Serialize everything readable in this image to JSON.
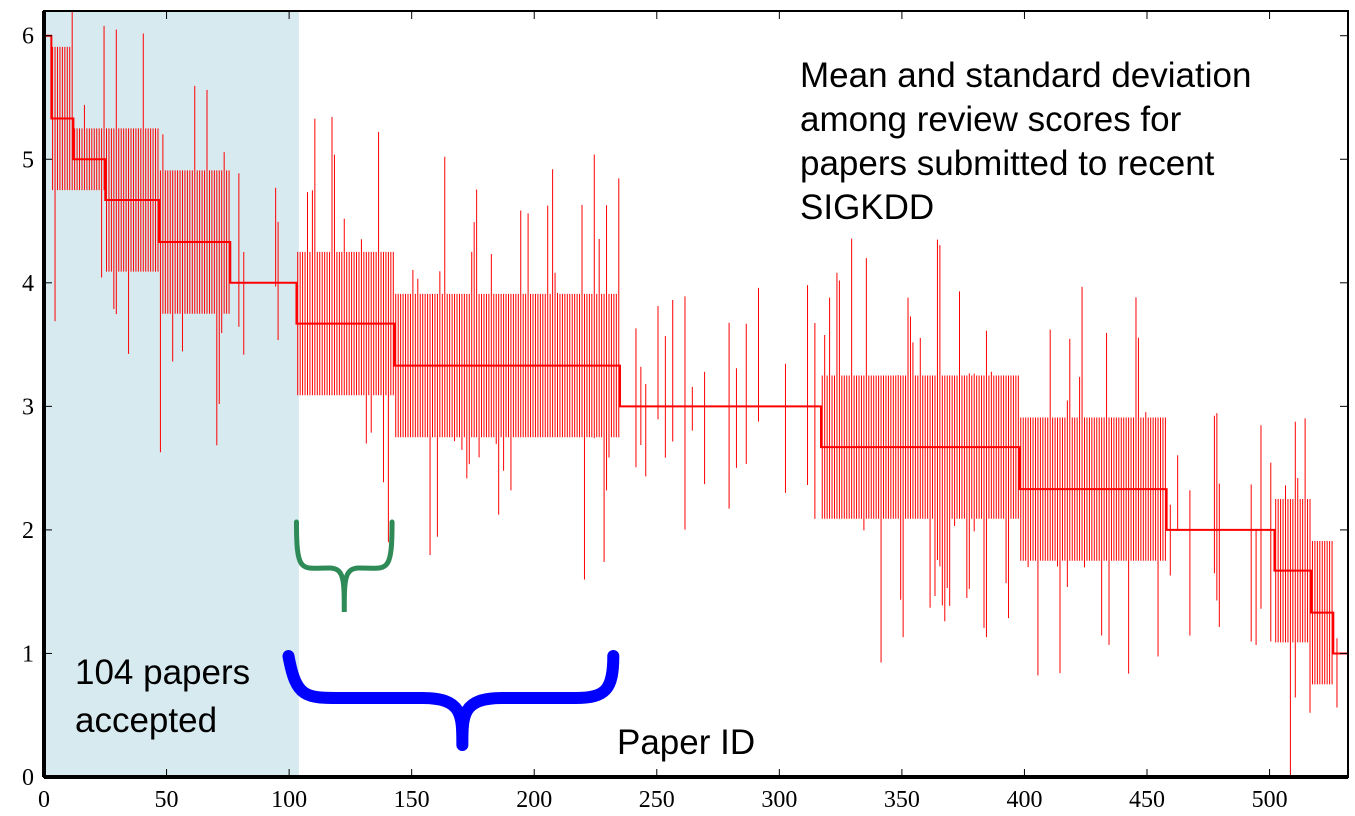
{
  "chart_data": {
    "type": "errorbar",
    "title": "Mean and standard deviation among review scores for papers submitted to recent SIGKDD",
    "title_lines": [
      "Mean and standard deviation",
      "among review scores for",
      "papers submitted to recent",
      "SIGKDD"
    ],
    "xlabel": "Paper ID",
    "ylabel": "",
    "xlim": [
      0,
      532
    ],
    "ylim": [
      0,
      6.2
    ],
    "x_ticks": [
      0,
      50,
      100,
      150,
      200,
      250,
      300,
      350,
      400,
      450,
      500
    ],
    "y_ticks": [
      0,
      1,
      2,
      3,
      4,
      5,
      6
    ],
    "grid": false,
    "series": [
      {
        "color": "#ff0000",
        "mean_plateaus": [
          {
            "x_start": 0,
            "x_end": 3,
            "mean": 6.0,
            "std": 0.0
          },
          {
            "x_start": 3,
            "x_end": 12,
            "mean": 5.33,
            "std": 0.58
          },
          {
            "x_start": 12,
            "x_end": 25,
            "mean": 5.0,
            "std": 0.25
          },
          {
            "x_start": 25,
            "x_end": 47,
            "mean": 4.67,
            "std": 0.58
          },
          {
            "x_start": 47,
            "x_end": 76,
            "mean": 4.33,
            "std": 0.58
          },
          {
            "x_start": 76,
            "x_end": 103,
            "mean": 4.0,
            "std": 0.0
          },
          {
            "x_start": 103,
            "x_end": 143,
            "mean": 3.67,
            "std": 0.58
          },
          {
            "x_start": 143,
            "x_end": 235,
            "mean": 3.33,
            "std": 0.58
          },
          {
            "x_start": 235,
            "x_end": 317,
            "mean": 3.0,
            "std": 0.0
          },
          {
            "x_start": 317,
            "x_end": 398,
            "mean": 2.67,
            "std": 0.58
          },
          {
            "x_start": 398,
            "x_end": 458,
            "mean": 2.33,
            "std": 0.58
          },
          {
            "x_start": 458,
            "x_end": 502,
            "mean": 2.0,
            "std": 0.0
          },
          {
            "x_start": 502,
            "x_end": 517,
            "mean": 1.67,
            "std": 0.58
          },
          {
            "x_start": 517,
            "x_end": 526,
            "mean": 1.33,
            "std": 0.58
          },
          {
            "x_start": 526,
            "x_end": 532,
            "mean": 1.0,
            "std": 0.0
          }
        ]
      }
    ],
    "accepted_region": {
      "x_start": 0,
      "x_end": 104,
      "color": "#d6eaf0"
    },
    "annotations": [
      {
        "name": "accepted-label",
        "lines": [
          "104 papers",
          "accepted"
        ]
      },
      {
        "name": "green-brace",
        "x_start": 103,
        "x_end": 142,
        "color": "#2e8b57"
      },
      {
        "name": "blue-brace",
        "x_start": 103,
        "x_end": 229,
        "color": "#0000ff"
      }
    ]
  }
}
